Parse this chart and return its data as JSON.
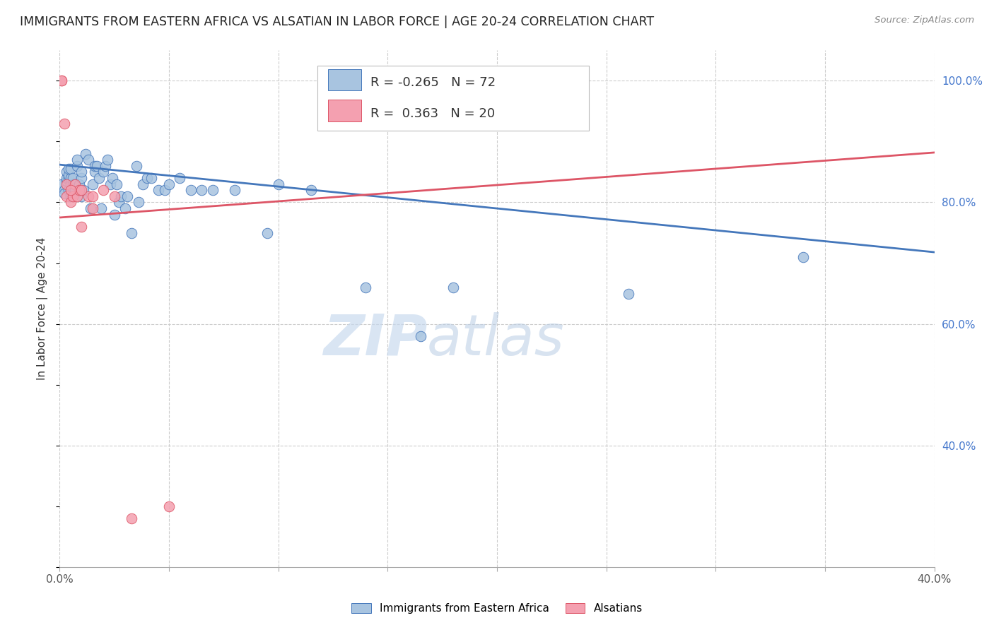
{
  "title": "IMMIGRANTS FROM EASTERN AFRICA VS ALSATIAN IN LABOR FORCE | AGE 20-24 CORRELATION CHART",
  "source": "Source: ZipAtlas.com",
  "ylabel": "In Labor Force | Age 20-24",
  "xlim": [
    0.0,
    0.4
  ],
  "ylim": [
    0.2,
    1.05
  ],
  "xticks": [
    0.0,
    0.05,
    0.1,
    0.15,
    0.2,
    0.25,
    0.3,
    0.35,
    0.4
  ],
  "xticklabels": [
    "0.0%",
    "",
    "",
    "",
    "",
    "",
    "",
    "",
    "40.0%"
  ],
  "yticks_right": [
    0.4,
    0.6,
    0.8,
    1.0
  ],
  "ytick_labels_right": [
    "40.0%",
    "60.0%",
    "80.0%",
    "100.0%"
  ],
  "blue_R": "-0.265",
  "blue_N": "72",
  "pink_R": "0.363",
  "pink_N": "20",
  "blue_color": "#a8c4e0",
  "pink_color": "#f4a0b0",
  "blue_line_color": "#4477bb",
  "pink_line_color": "#dd5566",
  "watermark_zip": "ZIP",
  "watermark_atlas": "atlas",
  "legend_label_blue": "Immigrants from Eastern Africa",
  "legend_label_pink": "Alsatians",
  "blue_scatter_x": [
    0.001,
    0.002,
    0.002,
    0.003,
    0.003,
    0.003,
    0.004,
    0.004,
    0.004,
    0.004,
    0.005,
    0.005,
    0.005,
    0.005,
    0.005,
    0.006,
    0.006,
    0.006,
    0.006,
    0.007,
    0.007,
    0.007,
    0.008,
    0.008,
    0.009,
    0.009,
    0.01,
    0.01,
    0.01,
    0.011,
    0.012,
    0.013,
    0.014,
    0.015,
    0.016,
    0.016,
    0.017,
    0.018,
    0.019,
    0.02,
    0.021,
    0.022,
    0.023,
    0.024,
    0.025,
    0.026,
    0.027,
    0.028,
    0.03,
    0.031,
    0.033,
    0.035,
    0.036,
    0.038,
    0.04,
    0.042,
    0.045,
    0.048,
    0.05,
    0.055,
    0.06,
    0.065,
    0.07,
    0.08,
    0.095,
    0.1,
    0.115,
    0.14,
    0.165,
    0.18,
    0.26,
    0.34
  ],
  "blue_scatter_y": [
    0.83,
    0.82,
    0.815,
    0.835,
    0.84,
    0.85,
    0.82,
    0.84,
    0.845,
    0.855,
    0.81,
    0.82,
    0.83,
    0.84,
    0.855,
    0.82,
    0.825,
    0.83,
    0.84,
    0.815,
    0.82,
    0.83,
    0.86,
    0.87,
    0.83,
    0.82,
    0.84,
    0.85,
    0.81,
    0.82,
    0.88,
    0.87,
    0.79,
    0.83,
    0.85,
    0.86,
    0.86,
    0.84,
    0.79,
    0.85,
    0.86,
    0.87,
    0.83,
    0.84,
    0.78,
    0.83,
    0.8,
    0.81,
    0.79,
    0.81,
    0.75,
    0.86,
    0.8,
    0.83,
    0.84,
    0.84,
    0.82,
    0.82,
    0.83,
    0.84,
    0.82,
    0.82,
    0.82,
    0.82,
    0.75,
    0.83,
    0.82,
    0.66,
    0.58,
    0.66,
    0.65,
    0.71
  ],
  "pink_scatter_x": [
    0.001,
    0.001,
    0.002,
    0.003,
    0.003,
    0.005,
    0.006,
    0.007,
    0.008,
    0.009,
    0.01,
    0.013,
    0.015,
    0.02,
    0.025,
    0.033,
    0.05,
    0.005,
    0.01,
    0.015
  ],
  "pink_scatter_y": [
    1.0,
    1.0,
    0.93,
    0.81,
    0.83,
    0.8,
    0.81,
    0.83,
    0.81,
    0.82,
    0.76,
    0.81,
    0.79,
    0.82,
    0.81,
    0.28,
    0.3,
    0.82,
    0.82,
    0.81
  ],
  "blue_trend_x": [
    0.0,
    0.4
  ],
  "blue_trend_y": [
    0.862,
    0.718
  ],
  "pink_trend_x": [
    0.0,
    0.4
  ],
  "pink_trend_y": [
    0.775,
    0.882
  ],
  "grid_color": "#cccccc",
  "background_color": "#ffffff"
}
